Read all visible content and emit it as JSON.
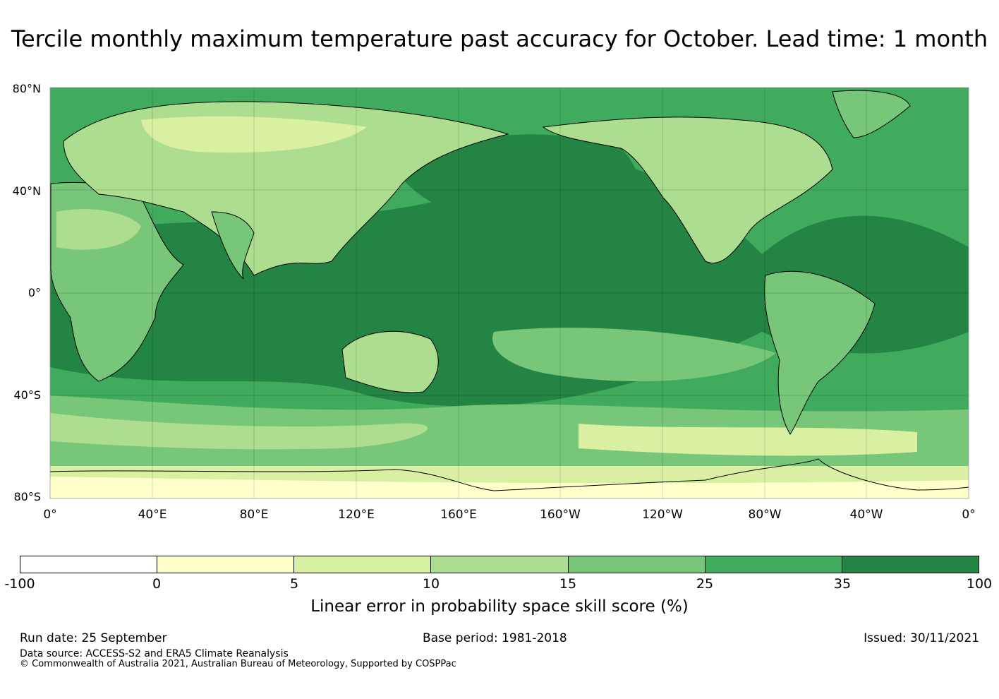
{
  "title": "Tercile monthly maximum temperature past accuracy for October. Lead time: 1 month",
  "map": {
    "lat_labels": [
      "80°N",
      "40°N",
      "0°",
      "40°S",
      "80°S"
    ],
    "lon_labels": [
      "0°",
      "40°E",
      "80°E",
      "120°E",
      "160°E",
      "160°W",
      "120°W",
      "80°W",
      "40°W",
      "0°"
    ]
  },
  "colorbar": {
    "ticks": [
      "-100",
      "0",
      "5",
      "10",
      "15",
      "25",
      "35",
      "100"
    ],
    "colors": [
      "#ffffff",
      "#ffffcc",
      "#d9f0a3",
      "#addd8e",
      "#78c679",
      "#41ab5d",
      "#238443"
    ],
    "label": "Linear error in probability space skill score (%)"
  },
  "footer": {
    "run_date": "Run date: 25 September",
    "base_period": "Base period: 1981-2018",
    "issued": "Issued: 30/11/2021",
    "data_source": "Data source: ACCESS-S2 and ERA5 Climate Reanalysis",
    "copyright": "© Commonwealth of Australia 2021, Australian Bureau of Meteorology, Supported by COSPPac"
  }
}
